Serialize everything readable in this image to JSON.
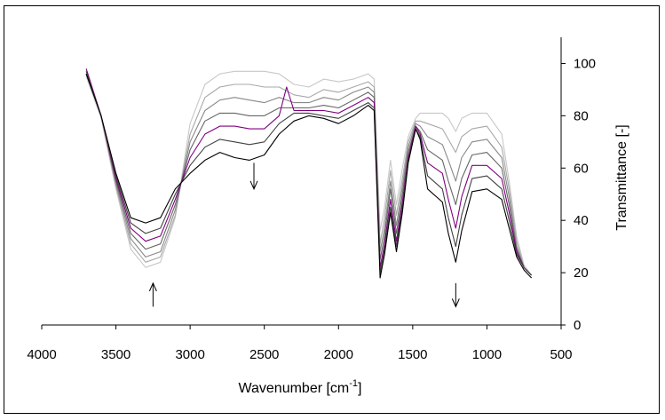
{
  "chart_data": {
    "type": "line",
    "title": "",
    "xlabel": "Wavenumber [cm",
    "xlabel_superscript": "-1",
    "xlabel_suffix": "]",
    "ylabel": "Transmittance [-]",
    "xlim": [
      4000,
      500
    ],
    "ylim": [
      0,
      110
    ],
    "x_ticks": [
      4000,
      3500,
      3000,
      2500,
      2000,
      1500,
      1000,
      500
    ],
    "y_ticks": [
      0,
      20,
      40,
      60,
      80,
      100
    ],
    "y_axis_side": "right",
    "grid": false,
    "legend": "none",
    "annotations": [
      {
        "type": "arrow",
        "direction": "up",
        "x": 3250,
        "from_y": 7,
        "to_y": 16
      },
      {
        "type": "arrow",
        "direction": "down",
        "x": 2570,
        "from_y": 62,
        "to_y": 52
      },
      {
        "type": "arrow",
        "direction": "down",
        "x": 1210,
        "from_y": 16,
        "to_y": 7
      }
    ],
    "series": [
      {
        "color": "#c8c8c8",
        "values": [
          [
            3700,
            95
          ],
          [
            3600,
            79
          ],
          [
            3500,
            52
          ],
          [
            3400,
            29
          ],
          [
            3300,
            22
          ],
          [
            3200,
            24
          ],
          [
            3100,
            41
          ],
          [
            3000,
            77
          ],
          [
            2900,
            92
          ],
          [
            2800,
            96
          ],
          [
            2700,
            97
          ],
          [
            2600,
            97
          ],
          [
            2500,
            97
          ],
          [
            2400,
            96
          ],
          [
            2300,
            92
          ],
          [
            2200,
            91
          ],
          [
            2100,
            94
          ],
          [
            2000,
            93
          ],
          [
            1900,
            94
          ],
          [
            1800,
            96
          ],
          [
            1760,
            94
          ],
          [
            1720,
            36
          ],
          [
            1690,
            45
          ],
          [
            1650,
            63
          ],
          [
            1610,
            46
          ],
          [
            1570,
            60
          ],
          [
            1530,
            72
          ],
          [
            1480,
            79
          ],
          [
            1450,
            81
          ],
          [
            1400,
            81
          ],
          [
            1300,
            81
          ],
          [
            1260,
            79
          ],
          [
            1210,
            74
          ],
          [
            1170,
            79
          ],
          [
            1100,
            81
          ],
          [
            1000,
            81
          ],
          [
            900,
            73
          ],
          [
            850,
            55
          ],
          [
            800,
            34
          ],
          [
            750,
            23
          ],
          [
            700,
            19
          ]
        ]
      },
      {
        "color": "#a8a8a8",
        "values": [
          [
            3700,
            96
          ],
          [
            3600,
            80
          ],
          [
            3500,
            53
          ],
          [
            3400,
            31
          ],
          [
            3300,
            24
          ],
          [
            3200,
            26
          ],
          [
            3100,
            42
          ],
          [
            3000,
            73
          ],
          [
            2900,
            87
          ],
          [
            2800,
            91
          ],
          [
            2700,
            92
          ],
          [
            2600,
            92
          ],
          [
            2500,
            91
          ],
          [
            2400,
            91
          ],
          [
            2300,
            88
          ],
          [
            2200,
            87
          ],
          [
            2100,
            90
          ],
          [
            2000,
            89
          ],
          [
            1900,
            91
          ],
          [
            1800,
            93
          ],
          [
            1760,
            91
          ],
          [
            1720,
            31
          ],
          [
            1690,
            41
          ],
          [
            1650,
            59
          ],
          [
            1610,
            42
          ],
          [
            1570,
            56
          ],
          [
            1530,
            70
          ],
          [
            1480,
            78
          ],
          [
            1450,
            78
          ],
          [
            1400,
            77
          ],
          [
            1300,
            75
          ],
          [
            1260,
            71
          ],
          [
            1210,
            66
          ],
          [
            1170,
            72
          ],
          [
            1100,
            75
          ],
          [
            1000,
            76
          ],
          [
            900,
            68
          ],
          [
            850,
            52
          ],
          [
            800,
            32
          ],
          [
            750,
            22
          ],
          [
            700,
            19
          ]
        ]
      },
      {
        "color": "#888888",
        "values": [
          [
            3700,
            96
          ],
          [
            3600,
            80
          ],
          [
            3500,
            54
          ],
          [
            3400,
            33
          ],
          [
            3300,
            26
          ],
          [
            3200,
            28
          ],
          [
            3100,
            44
          ],
          [
            3000,
            70
          ],
          [
            2900,
            82
          ],
          [
            2800,
            86
          ],
          [
            2700,
            87
          ],
          [
            2600,
            86
          ],
          [
            2500,
            85
          ],
          [
            2400,
            87
          ],
          [
            2300,
            85
          ],
          [
            2200,
            85
          ],
          [
            2100,
            87
          ],
          [
            2000,
            86
          ],
          [
            1900,
            89
          ],
          [
            1800,
            91
          ],
          [
            1760,
            89
          ],
          [
            1720,
            28
          ],
          [
            1690,
            37
          ],
          [
            1650,
            55
          ],
          [
            1610,
            38
          ],
          [
            1570,
            53
          ],
          [
            1530,
            68
          ],
          [
            1480,
            77
          ],
          [
            1450,
            76
          ],
          [
            1400,
            72
          ],
          [
            1300,
            69
          ],
          [
            1260,
            63
          ],
          [
            1210,
            55
          ],
          [
            1170,
            64
          ],
          [
            1100,
            70
          ],
          [
            1000,
            71
          ],
          [
            900,
            64
          ],
          [
            850,
            49
          ],
          [
            800,
            30
          ],
          [
            750,
            22
          ],
          [
            700,
            19
          ]
        ]
      },
      {
        "color": "#666666",
        "values": [
          [
            3700,
            96
          ],
          [
            3600,
            80
          ],
          [
            3500,
            55
          ],
          [
            3400,
            35
          ],
          [
            3300,
            29
          ],
          [
            3200,
            31
          ],
          [
            3100,
            46
          ],
          [
            3000,
            67
          ],
          [
            2900,
            78
          ],
          [
            2800,
            81
          ],
          [
            2700,
            81
          ],
          [
            2600,
            80
          ],
          [
            2500,
            80
          ],
          [
            2400,
            83
          ],
          [
            2300,
            83
          ],
          [
            2200,
            83
          ],
          [
            2100,
            84
          ],
          [
            2000,
            83
          ],
          [
            1900,
            86
          ],
          [
            1800,
            89
          ],
          [
            1760,
            87
          ],
          [
            1720,
            25
          ],
          [
            1690,
            34
          ],
          [
            1650,
            52
          ],
          [
            1610,
            35
          ],
          [
            1570,
            50
          ],
          [
            1530,
            66
          ],
          [
            1480,
            76
          ],
          [
            1450,
            74
          ],
          [
            1400,
            67
          ],
          [
            1300,
            63
          ],
          [
            1260,
            55
          ],
          [
            1210,
            46
          ],
          [
            1170,
            56
          ],
          [
            1100,
            65
          ],
          [
            1000,
            66
          ],
          [
            900,
            60
          ],
          [
            850,
            46
          ],
          [
            800,
            29
          ],
          [
            750,
            22
          ],
          [
            700,
            19
          ]
        ]
      },
      {
        "color": "#800080",
        "values": [
          [
            3700,
            98
          ],
          [
            3600,
            80
          ],
          [
            3500,
            56
          ],
          [
            3400,
            37
          ],
          [
            3300,
            32
          ],
          [
            3200,
            34
          ],
          [
            3100,
            48
          ],
          [
            3000,
            64
          ],
          [
            2900,
            73
          ],
          [
            2800,
            76
          ],
          [
            2700,
            76
          ],
          [
            2600,
            75
          ],
          [
            2500,
            75
          ],
          [
            2400,
            80
          ],
          [
            2350,
            91
          ],
          [
            2300,
            82
          ],
          [
            2200,
            82
          ],
          [
            2100,
            82
          ],
          [
            2000,
            81
          ],
          [
            1900,
            84
          ],
          [
            1800,
            87
          ],
          [
            1760,
            85
          ],
          [
            1720,
            22
          ],
          [
            1690,
            31
          ],
          [
            1650,
            48
          ],
          [
            1610,
            32
          ],
          [
            1570,
            47
          ],
          [
            1530,
            64
          ],
          [
            1480,
            76
          ],
          [
            1450,
            73
          ],
          [
            1400,
            62
          ],
          [
            1300,
            58
          ],
          [
            1260,
            48
          ],
          [
            1210,
            37
          ],
          [
            1170,
            49
          ],
          [
            1100,
            61
          ],
          [
            1000,
            61
          ],
          [
            900,
            56
          ],
          [
            850,
            43
          ],
          [
            800,
            28
          ],
          [
            750,
            22
          ],
          [
            700,
            19
          ]
        ]
      },
      {
        "color": "#404040",
        "values": [
          [
            3700,
            97
          ],
          [
            3600,
            80
          ],
          [
            3500,
            57
          ],
          [
            3400,
            39
          ],
          [
            3300,
            35
          ],
          [
            3200,
            37
          ],
          [
            3100,
            50
          ],
          [
            3000,
            61
          ],
          [
            2900,
            68
          ],
          [
            2800,
            71
          ],
          [
            2700,
            70
          ],
          [
            2600,
            69
          ],
          [
            2500,
            70
          ],
          [
            2400,
            77
          ],
          [
            2300,
            81
          ],
          [
            2200,
            81
          ],
          [
            2100,
            80
          ],
          [
            2000,
            79
          ],
          [
            1900,
            82
          ],
          [
            1800,
            85
          ],
          [
            1760,
            83
          ],
          [
            1720,
            20
          ],
          [
            1690,
            29
          ],
          [
            1650,
            45
          ],
          [
            1610,
            30
          ],
          [
            1570,
            45
          ],
          [
            1530,
            63
          ],
          [
            1480,
            75
          ],
          [
            1450,
            72
          ],
          [
            1400,
            57
          ],
          [
            1300,
            52
          ],
          [
            1260,
            41
          ],
          [
            1210,
            30
          ],
          [
            1170,
            42
          ],
          [
            1100,
            56
          ],
          [
            1000,
            57
          ],
          [
            900,
            52
          ],
          [
            850,
            40
          ],
          [
            800,
            27
          ],
          [
            750,
            22
          ],
          [
            700,
            19
          ]
        ]
      },
      {
        "color": "#000000",
        "values": [
          [
            3700,
            96
          ],
          [
            3600,
            80
          ],
          [
            3500,
            58
          ],
          [
            3400,
            41
          ],
          [
            3300,
            39
          ],
          [
            3200,
            41
          ],
          [
            3100,
            52
          ],
          [
            3000,
            58
          ],
          [
            2900,
            63
          ],
          [
            2800,
            66
          ],
          [
            2700,
            64
          ],
          [
            2600,
            63
          ],
          [
            2500,
            65
          ],
          [
            2400,
            73
          ],
          [
            2300,
            78
          ],
          [
            2200,
            80
          ],
          [
            2100,
            79
          ],
          [
            2000,
            77
          ],
          [
            1900,
            80
          ],
          [
            1800,
            84
          ],
          [
            1760,
            82
          ],
          [
            1720,
            18
          ],
          [
            1690,
            27
          ],
          [
            1650,
            43
          ],
          [
            1610,
            28
          ],
          [
            1570,
            43
          ],
          [
            1530,
            62
          ],
          [
            1480,
            75
          ],
          [
            1450,
            71
          ],
          [
            1400,
            52
          ],
          [
            1300,
            47
          ],
          [
            1260,
            35
          ],
          [
            1210,
            24
          ],
          [
            1170,
            36
          ],
          [
            1100,
            51
          ],
          [
            1000,
            52
          ],
          [
            900,
            48
          ],
          [
            850,
            37
          ],
          [
            800,
            26
          ],
          [
            750,
            21
          ],
          [
            700,
            18
          ]
        ]
      }
    ]
  }
}
